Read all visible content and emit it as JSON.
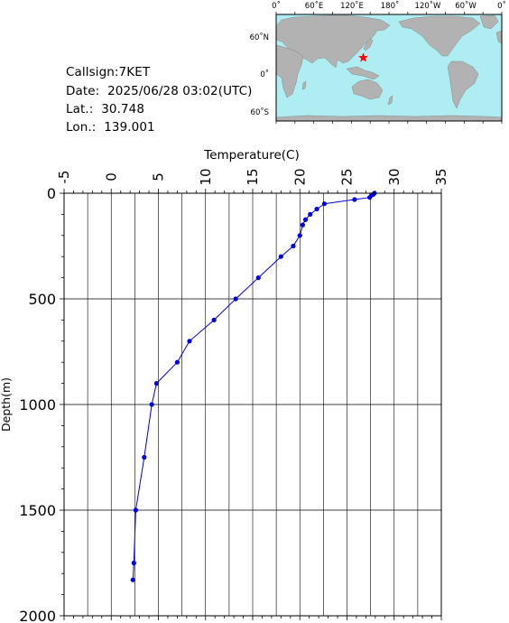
{
  "station": {
    "callsign": "Callsign:7KET",
    "date": "Date:  2025/06/28 03:02(UTC)",
    "lat": "Lat.:  30.748",
    "lon": "Lon.:  139.001"
  },
  "map": {
    "lon_labels": [
      "0˚",
      "60˚E",
      "120˚E",
      "180˚",
      "120˚W",
      "60˚W",
      "0˚"
    ],
    "lat_labels": [
      "60˚N",
      "0˚",
      "60˚S"
    ],
    "marker_lon": 139.001,
    "marker_lat": 30.748,
    "colors": {
      "ocean": "#aeeef3",
      "land": "#b2b2b2",
      "marker": "#ff0000"
    }
  },
  "chart_data": {
    "type": "line",
    "xlabel": "Temperature(C)",
    "ylabel": "Depth(m)",
    "xlim": [
      -5,
      35
    ],
    "ylim": [
      2000,
      0
    ],
    "x_ticks": [
      "-5",
      "0",
      "5",
      "10",
      "15",
      "20",
      "25",
      "30",
      "35"
    ],
    "y_ticks": [
      "0",
      "500",
      "1000",
      "1500",
      "2000"
    ],
    "grid": true,
    "color": "#0000dd",
    "series": [
      {
        "temperature": [
          27.9,
          27.8,
          27.6,
          27.4,
          25.8,
          22.6,
          21.8,
          21.1,
          20.6,
          20.3,
          20.0,
          19.3,
          18.0,
          15.6,
          13.2,
          10.9,
          8.3,
          7.0,
          4.8,
          4.3,
          3.5,
          2.6,
          2.4,
          2.3
        ],
        "depth": [
          0,
          5,
          10,
          20,
          30,
          50,
          75,
          100,
          125,
          150,
          200,
          250,
          300,
          400,
          500,
          600,
          700,
          800,
          900,
          1000,
          1250,
          1500,
          1750,
          1830
        ]
      }
    ]
  }
}
